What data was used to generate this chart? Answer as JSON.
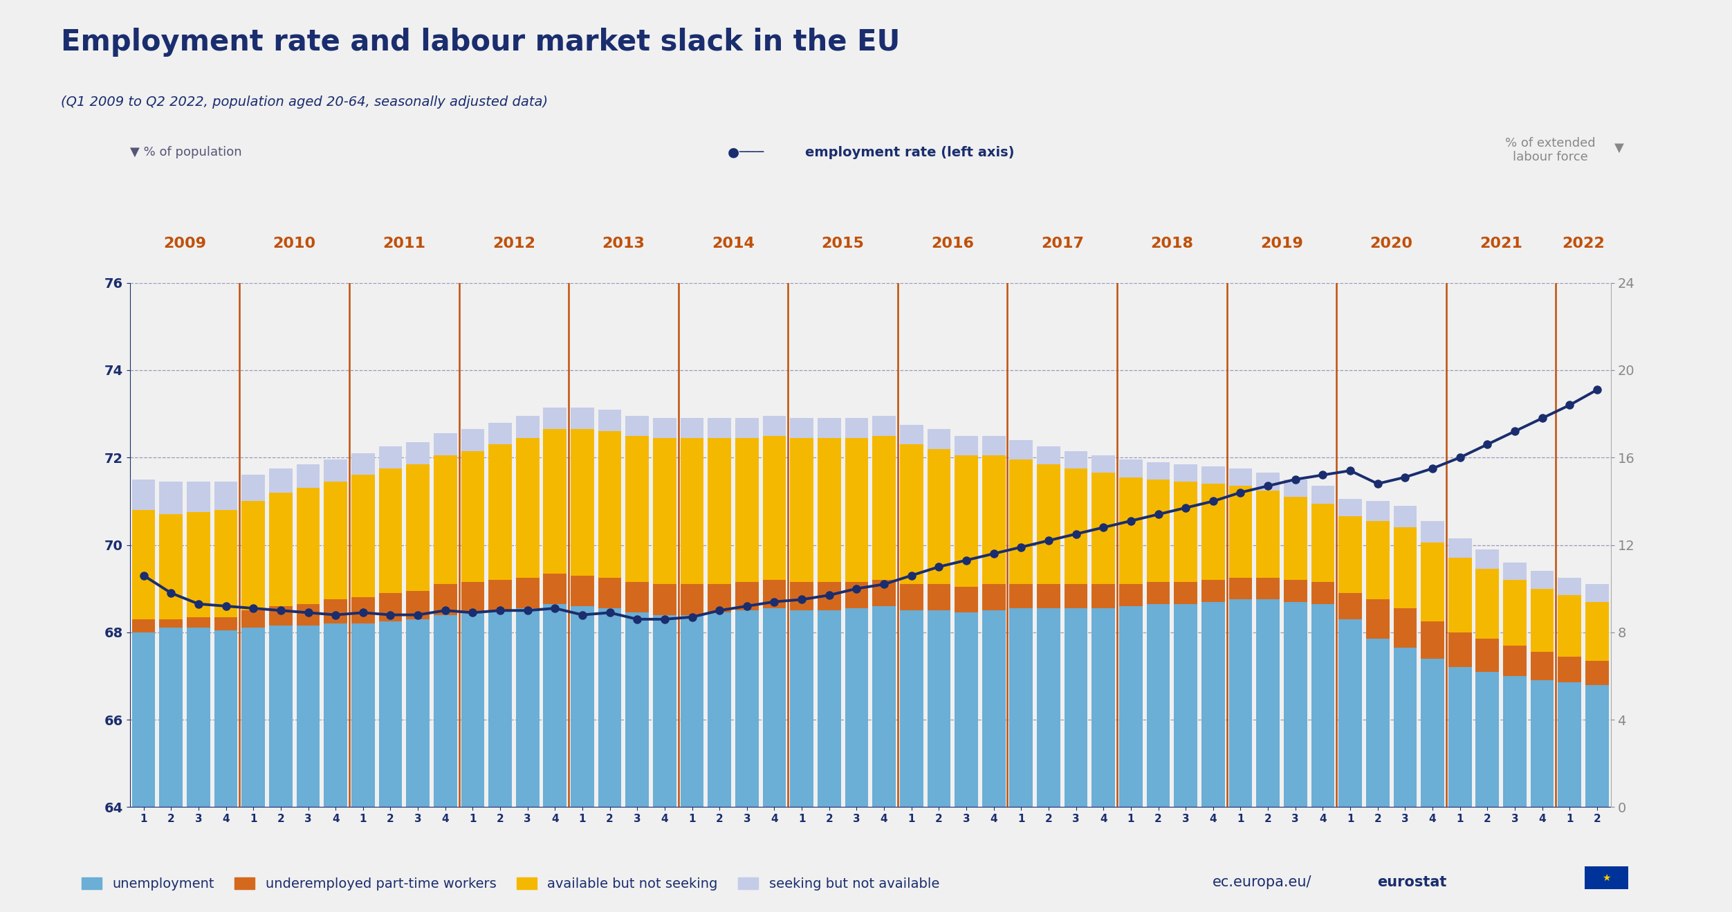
{
  "title": "Employment rate and labour market slack in the EU",
  "subtitle": "(Q1 2009 to Q2 2022, population aged 20-64, seasonally adjusted data)",
  "left_axis_label": "% of population",
  "right_axis_label": "% of extended\nlabour force",
  "employment_rate_label": "employment rate (left axis)",
  "ylim_left": [
    64,
    76
  ],
  "ylim_right": [
    0,
    24
  ],
  "bg_color": "#f0f0f0",
  "plot_bg_color": "#f0f0f0",
  "year_label_color": "#c0500a",
  "year_line_color": "#c0500a",
  "grid_color": "#9999bb",
  "title_color": "#1a2d6e",
  "employment_line_color": "#1a2d6e",
  "c_unempl": "#6baed6",
  "c_under": "#d4691e",
  "c_avail": "#f5b800",
  "c_seek": "#c5cce8",
  "years": [
    2009,
    2010,
    2011,
    2012,
    2013,
    2014,
    2015,
    2016,
    2017,
    2018,
    2019,
    2020,
    2021,
    2022
  ],
  "n_quarters": 54,
  "unemployment": [
    68.0,
    68.1,
    68.1,
    68.05,
    68.1,
    68.15,
    68.15,
    68.2,
    68.2,
    68.25,
    68.3,
    68.4,
    68.45,
    68.5,
    68.55,
    68.65,
    68.6,
    68.55,
    68.45,
    68.4,
    68.4,
    68.45,
    68.5,
    68.55,
    68.5,
    68.5,
    68.55,
    68.6,
    68.5,
    68.5,
    68.45,
    68.5,
    68.55,
    68.55,
    68.55,
    68.55,
    68.6,
    68.65,
    68.65,
    68.7,
    68.75,
    68.75,
    68.7,
    68.65,
    68.3,
    67.85,
    67.65,
    67.4,
    67.2,
    67.1,
    67.0,
    66.9,
    66.85,
    66.8
  ],
  "underemployed": [
    0.3,
    0.2,
    0.25,
    0.3,
    0.4,
    0.45,
    0.5,
    0.55,
    0.6,
    0.65,
    0.65,
    0.7,
    0.7,
    0.7,
    0.7,
    0.7,
    0.7,
    0.7,
    0.7,
    0.7,
    0.7,
    0.65,
    0.65,
    0.65,
    0.65,
    0.65,
    0.6,
    0.6,
    0.6,
    0.6,
    0.6,
    0.6,
    0.55,
    0.55,
    0.55,
    0.55,
    0.5,
    0.5,
    0.5,
    0.5,
    0.5,
    0.5,
    0.5,
    0.5,
    0.6,
    0.9,
    0.9,
    0.85,
    0.8,
    0.75,
    0.7,
    0.65,
    0.6,
    0.55
  ],
  "available_not_seeking": [
    2.5,
    2.4,
    2.4,
    2.45,
    2.5,
    2.6,
    2.65,
    2.7,
    2.8,
    2.85,
    2.9,
    2.95,
    3.0,
    3.1,
    3.2,
    3.3,
    3.35,
    3.35,
    3.35,
    3.35,
    3.35,
    3.35,
    3.3,
    3.3,
    3.3,
    3.3,
    3.3,
    3.3,
    3.2,
    3.1,
    3.0,
    2.95,
    2.85,
    2.75,
    2.65,
    2.55,
    2.45,
    2.35,
    2.3,
    2.2,
    2.1,
    2.0,
    1.9,
    1.8,
    1.75,
    1.8,
    1.85,
    1.8,
    1.7,
    1.6,
    1.5,
    1.45,
    1.4,
    1.35
  ],
  "seeking_not_available": [
    0.7,
    0.75,
    0.7,
    0.65,
    0.6,
    0.55,
    0.55,
    0.5,
    0.5,
    0.5,
    0.5,
    0.5,
    0.5,
    0.5,
    0.5,
    0.5,
    0.5,
    0.5,
    0.45,
    0.45,
    0.45,
    0.45,
    0.45,
    0.45,
    0.45,
    0.45,
    0.45,
    0.45,
    0.45,
    0.45,
    0.45,
    0.45,
    0.45,
    0.4,
    0.4,
    0.4,
    0.4,
    0.4,
    0.4,
    0.4,
    0.4,
    0.4,
    0.4,
    0.4,
    0.4,
    0.45,
    0.5,
    0.5,
    0.45,
    0.45,
    0.4,
    0.4,
    0.4,
    0.4
  ],
  "employment_rate": [
    69.3,
    68.9,
    68.65,
    68.6,
    68.55,
    68.5,
    68.45,
    68.4,
    68.45,
    68.4,
    68.4,
    68.5,
    68.45,
    68.5,
    68.5,
    68.55,
    68.4,
    68.45,
    68.3,
    68.3,
    68.35,
    68.5,
    68.6,
    68.7,
    68.75,
    68.85,
    69.0,
    69.1,
    69.3,
    69.5,
    69.65,
    69.8,
    69.95,
    70.1,
    70.25,
    70.4,
    70.55,
    70.7,
    70.85,
    71.0,
    71.2,
    71.35,
    71.5,
    71.6,
    71.7,
    71.4,
    71.55,
    71.75,
    72.0,
    72.3,
    72.6,
    72.9,
    73.2,
    73.55
  ],
  "watermark_regular": "ec.europa.eu/",
  "watermark_bold": "eurostat"
}
